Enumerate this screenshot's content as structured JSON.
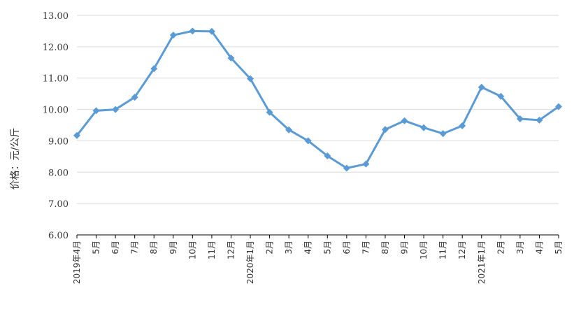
{
  "chart_data": {
    "type": "line",
    "ylabel": "价格：元/公斤",
    "ylim": [
      6,
      13
    ],
    "ytick_step": 1,
    "ytick_labels": [
      "6.00",
      "7.00",
      "8.00",
      "9.00",
      "10.00",
      "11.00",
      "12.00",
      "13.00"
    ],
    "grid": true,
    "categories": [
      "2019年4月",
      "5月",
      "6月",
      "7月",
      "8月",
      "9月",
      "10月",
      "11月",
      "12月",
      "2020年1月",
      "2月",
      "3月",
      "4月",
      "5月",
      "6月",
      "7月",
      "8月",
      "9月",
      "10月",
      "11月",
      "12月",
      "2021年1月",
      "2月",
      "3月",
      "4月",
      "5月"
    ],
    "series": [
      {
        "values": [
          9.17,
          9.96,
          10.0,
          10.39,
          11.3,
          12.37,
          12.5,
          12.49,
          11.64,
          10.98,
          9.91,
          9.35,
          9.0,
          8.52,
          8.13,
          8.26,
          9.36,
          9.64,
          9.42,
          9.23,
          9.48,
          10.71,
          10.42,
          9.7,
          9.66,
          10.09
        ]
      }
    ],
    "colors": {
      "line": "#5b9bd5",
      "grid": "#d9d9d9",
      "axis": "#000000"
    }
  }
}
